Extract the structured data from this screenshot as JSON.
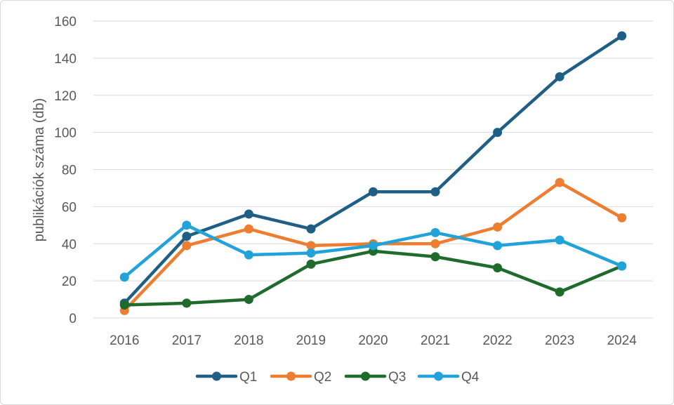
{
  "chart_data": {
    "type": "line",
    "title": "",
    "xlabel": "",
    "ylabel": "publikációk száma (db)",
    "categories": [
      "2016",
      "2017",
      "2018",
      "2019",
      "2020",
      "2021",
      "2022",
      "2023",
      "2024"
    ],
    "ylim": [
      0,
      160
    ],
    "yticks": [
      0,
      20,
      40,
      60,
      80,
      100,
      120,
      140,
      160
    ],
    "grid": true,
    "legend_position": "bottom",
    "series": [
      {
        "name": "Q1",
        "color": "#1f5f85",
        "values": [
          8,
          44,
          56,
          48,
          68,
          68,
          100,
          130,
          152
        ]
      },
      {
        "name": "Q2",
        "color": "#ed7d31",
        "values": [
          4,
          39,
          48,
          39,
          40,
          40,
          49,
          73,
          54
        ]
      },
      {
        "name": "Q3",
        "color": "#1e6b2b",
        "values": [
          7,
          8,
          10,
          29,
          36,
          33,
          27,
          14,
          28
        ]
      },
      {
        "name": "Q4",
        "color": "#21a3d9",
        "values": [
          22,
          50,
          34,
          35,
          39,
          46,
          39,
          42,
          28
        ]
      }
    ]
  }
}
